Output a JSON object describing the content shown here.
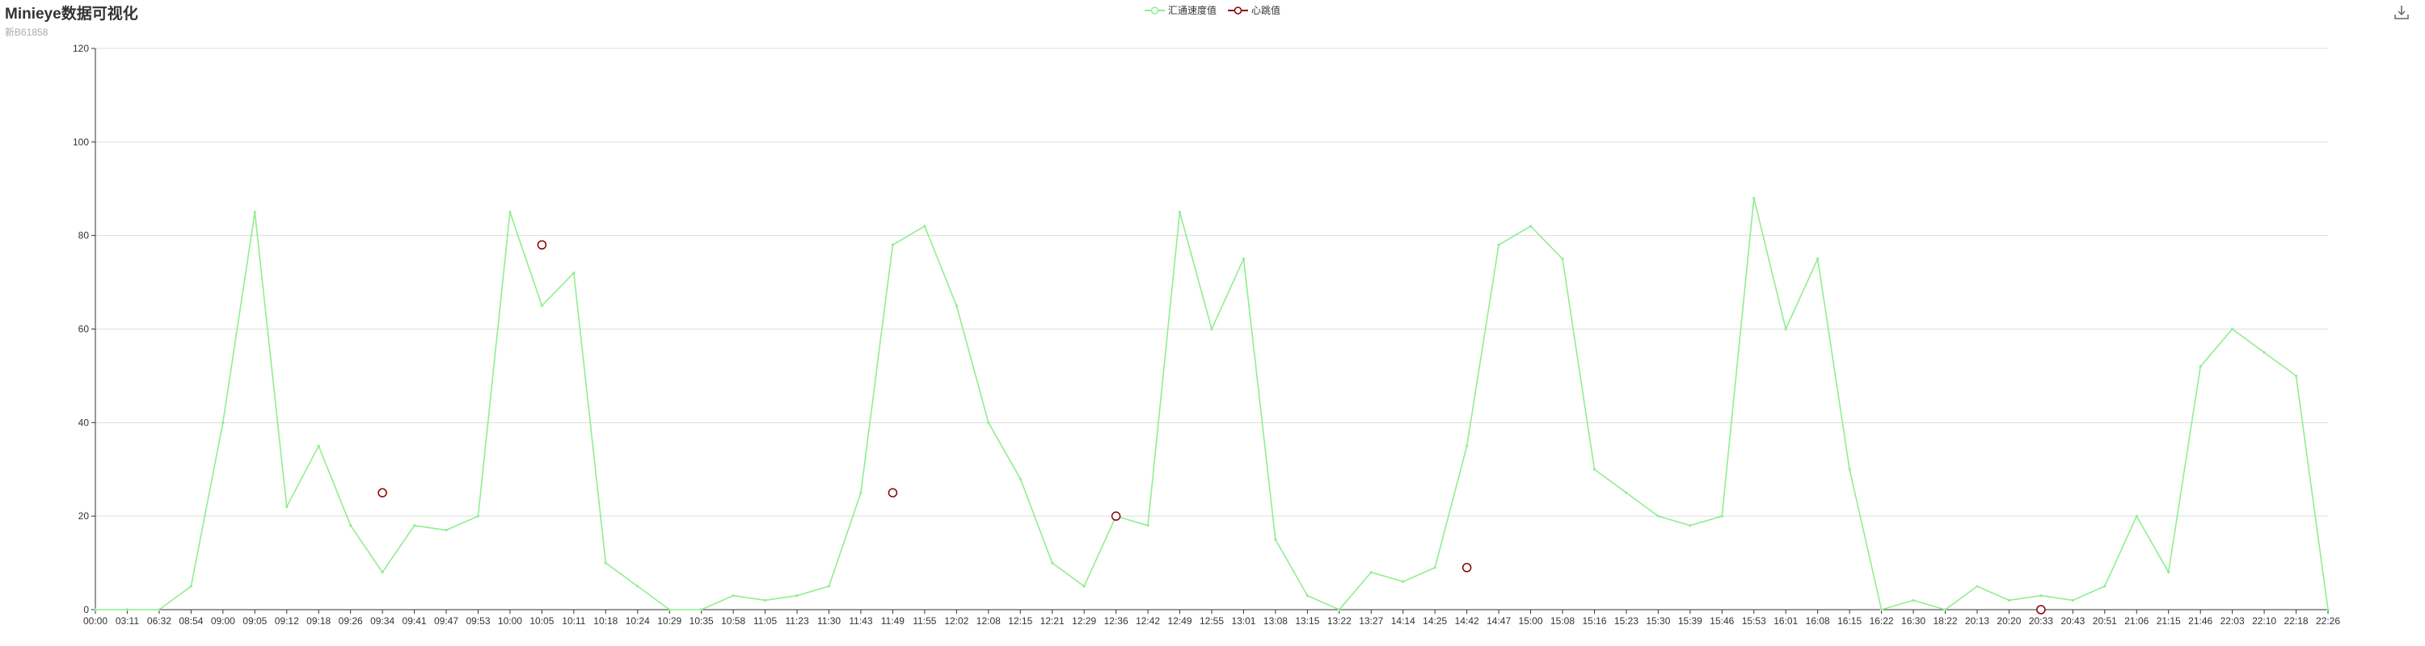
{
  "header": {
    "title": "Minieye数据可视化",
    "subtitle": "新B61858"
  },
  "colors": {
    "speed": "#90ee90",
    "heartbeat": "#8b0000",
    "grid": "#dddddd",
    "axis": "#333333"
  },
  "toolbar": {
    "download_icon": "download-icon"
  },
  "chart_data": {
    "type": "line",
    "title": "Minieye数据可视化",
    "subtitle": "新B61858",
    "ylim": [
      0,
      120
    ],
    "yticks": [
      0,
      20,
      40,
      60,
      80,
      100,
      120
    ],
    "legend_position": "top-center",
    "grid": true,
    "categories": [
      "00:00",
      "03:11",
      "06:32",
      "08:54",
      "09:00",
      "09:05",
      "09:12",
      "09:18",
      "09:26",
      "09:34",
      "09:41",
      "09:47",
      "09:53",
      "10:00",
      "10:05",
      "10:11",
      "10:18",
      "10:24",
      "10:29",
      "10:35",
      "10:58",
      "11:05",
      "11:23",
      "11:30",
      "11:43",
      "11:49",
      "11:55",
      "12:02",
      "12:08",
      "12:15",
      "12:21",
      "12:29",
      "12:36",
      "12:42",
      "12:49",
      "12:55",
      "13:01",
      "13:08",
      "13:15",
      "13:22",
      "13:27",
      "14:14",
      "14:25",
      "14:42",
      "14:47",
      "15:00",
      "15:08",
      "15:16",
      "15:23",
      "15:30",
      "15:39",
      "15:46",
      "15:53",
      "16:01",
      "16:08",
      "16:15",
      "16:22",
      "16:30",
      "18:22",
      "20:13",
      "20:20",
      "20:33",
      "20:43",
      "20:51",
      "21:06",
      "21:15",
      "21:46",
      "22:03",
      "22:10",
      "22:18",
      "22:26"
    ],
    "series": [
      {
        "name": "汇通速度值",
        "color": "#90ee90",
        "style": "line",
        "values": [
          0,
          0,
          0,
          5,
          40,
          85,
          22,
          35,
          18,
          8,
          18,
          17,
          20,
          85,
          65,
          72,
          10,
          5,
          0,
          0,
          3,
          2,
          3,
          5,
          25,
          78,
          82,
          65,
          40,
          28,
          10,
          5,
          20,
          18,
          85,
          60,
          75,
          15,
          3,
          0,
          8,
          6,
          9,
          35,
          78,
          82,
          75,
          30,
          25,
          20,
          18,
          20,
          88,
          60,
          75,
          30,
          0,
          2,
          0,
          5,
          2,
          3,
          2,
          5,
          20,
          8,
          52,
          60,
          55,
          50,
          0
        ]
      },
      {
        "name": "心跳值",
        "color": "#8b0000",
        "style": "marker",
        "points": [
          {
            "x": "09:34",
            "y": 25
          },
          {
            "x": "10:05",
            "y": 78
          },
          {
            "x": "11:49",
            "y": 25
          },
          {
            "x": "12:36",
            "y": 20
          },
          {
            "x": "14:42",
            "y": 9
          },
          {
            "x": "20:33",
            "y": 0
          }
        ]
      }
    ]
  }
}
